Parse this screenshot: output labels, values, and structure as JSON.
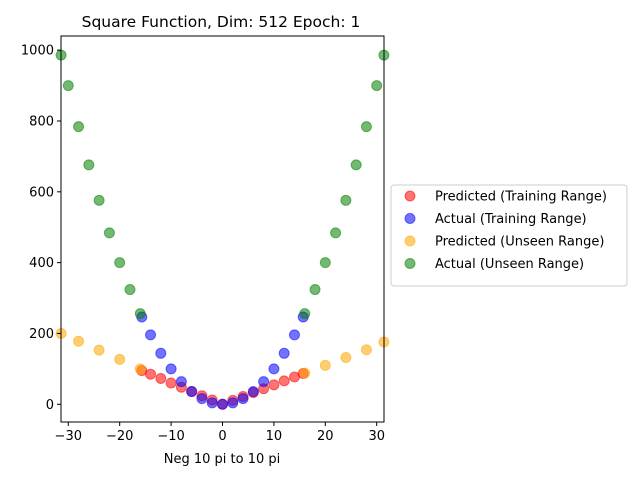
{
  "chart_data": {
    "type": "scatter",
    "title": "Square Function, Dim: 512 Epoch: 1",
    "xlabel": "Neg 10 pi to 10 pi",
    "ylabel": "",
    "xlim": [
      -31.416,
      31.416
    ],
    "ylim": [
      -50,
      1040
    ],
    "x_ticks": [
      -30,
      -20,
      -10,
      0,
      10,
      20,
      30
    ],
    "x_tick_labels": [
      "−30",
      "−20",
      "−10",
      "0",
      "10",
      "20",
      "30"
    ],
    "y_ticks": [
      0,
      200,
      400,
      600,
      800,
      1000
    ],
    "y_tick_labels": [
      "0",
      "200",
      "400",
      "600",
      "800",
      "1000"
    ],
    "grid": false,
    "legend_position": "outside-right",
    "series": [
      {
        "name": "Predicted (Training Range)",
        "color": "#ff0000",
        "x": [
          -15.7,
          -14,
          -12,
          -10,
          -8,
          -6,
          -4,
          -2,
          0,
          2,
          4,
          6,
          8,
          10,
          12,
          14,
          15.7
        ],
        "y": [
          95,
          85,
          73,
          60,
          48,
          36,
          24,
          12,
          0,
          11,
          22,
          33,
          44,
          55,
          66,
          77,
          87
        ]
      },
      {
        "name": "Actual (Training Range)",
        "color": "#0000ff",
        "x": [
          -15.7,
          -14,
          -12,
          -10,
          -8,
          -6,
          -4,
          -2,
          0,
          2,
          4,
          6,
          8,
          10,
          12,
          14,
          15.7
        ],
        "y": [
          246.5,
          196,
          144,
          100,
          64,
          36,
          16,
          4,
          0,
          4,
          16,
          36,
          64,
          100,
          144,
          196,
          246.5
        ]
      },
      {
        "name": "Predicted (Unseen Range)",
        "color": "#ffa500",
        "x": [
          -31.4,
          -28,
          -24,
          -20,
          -16,
          16,
          20,
          24,
          28,
          31.4
        ],
        "y": [
          200,
          178,
          153,
          127,
          100,
          88,
          110,
          132,
          154,
          176
        ]
      },
      {
        "name": "Actual (Unseen Range)",
        "color": "#008000",
        "x": [
          -31.4,
          -30,
          -28,
          -26,
          -24,
          -22,
          -20,
          -18,
          -16,
          16,
          18,
          20,
          22,
          24,
          26,
          28,
          30,
          31.4
        ],
        "y": [
          986,
          900,
          784,
          676,
          576,
          484,
          400,
          324,
          256,
          256,
          324,
          400,
          484,
          576,
          676,
          784,
          900,
          986
        ]
      }
    ]
  }
}
